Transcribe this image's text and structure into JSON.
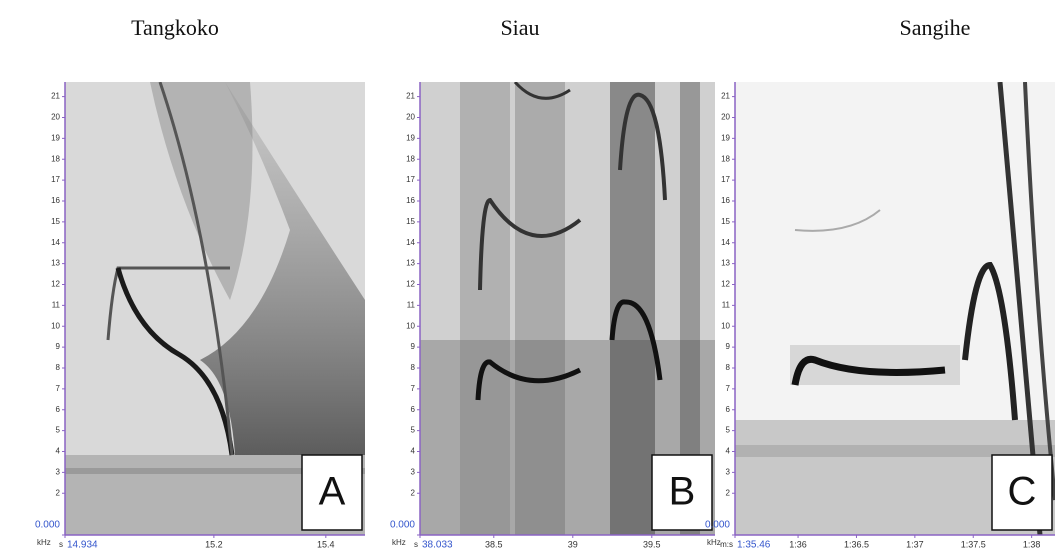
{
  "chart_data": [
    {
      "type": "spectrogram",
      "title": "Tangkoko",
      "panel_label": "A",
      "ylabel": "kHz",
      "xlabel": "s",
      "xlim": [
        14.934,
        15.47
      ],
      "ylim": [
        0,
        21.7
      ],
      "xticks": [
        {
          "value": 14.934,
          "label": "14.934"
        },
        15.2,
        15.4
      ],
      "yticks": [
        {
          "value": 0,
          "label": "0.000"
        },
        2,
        3,
        4,
        5,
        6,
        7,
        8,
        9,
        10,
        11,
        12,
        13,
        14,
        15,
        16,
        17,
        18,
        19,
        20,
        21
      ]
    },
    {
      "type": "spectrogram",
      "title": "Siau",
      "panel_label": "B",
      "ylabel": "kHz",
      "xlabel": "s",
      "xlim": [
        38.033,
        39.9
      ],
      "ylim": [
        0,
        21.7
      ],
      "xticks": [
        {
          "value": 38.033,
          "label": "38.033"
        },
        38.5,
        39,
        39.5
      ],
      "yticks": [
        {
          "value": 0,
          "label": "0.000"
        },
        2,
        3,
        4,
        5,
        6,
        7,
        8,
        9,
        10,
        11,
        12,
        13,
        14,
        15,
        16,
        17,
        18,
        19,
        20,
        21
      ]
    },
    {
      "type": "spectrogram",
      "title": "Sangihe",
      "panel_label": "C",
      "ylabel": "kHz",
      "xlabel": "m:s",
      "xlim": [
        95.46,
        98.2
      ],
      "ylim": [
        0,
        21.7
      ],
      "xticks": [
        {
          "value": 95.46,
          "label": "1:35.46"
        },
        {
          "value": 96,
          "label": "1:36"
        },
        {
          "value": 96.5,
          "label": "1:36.5"
        },
        {
          "value": 97,
          "label": "1:37"
        },
        {
          "value": 97.5,
          "label": "1:37.5"
        },
        {
          "value": 98,
          "label": "1:38"
        }
      ],
      "yticks": [
        {
          "value": 0,
          "label": "0.000"
        },
        2,
        3,
        4,
        5,
        6,
        7,
        8,
        9,
        10,
        11,
        12,
        13,
        14,
        15,
        16,
        17,
        18,
        19,
        20,
        21
      ]
    }
  ]
}
